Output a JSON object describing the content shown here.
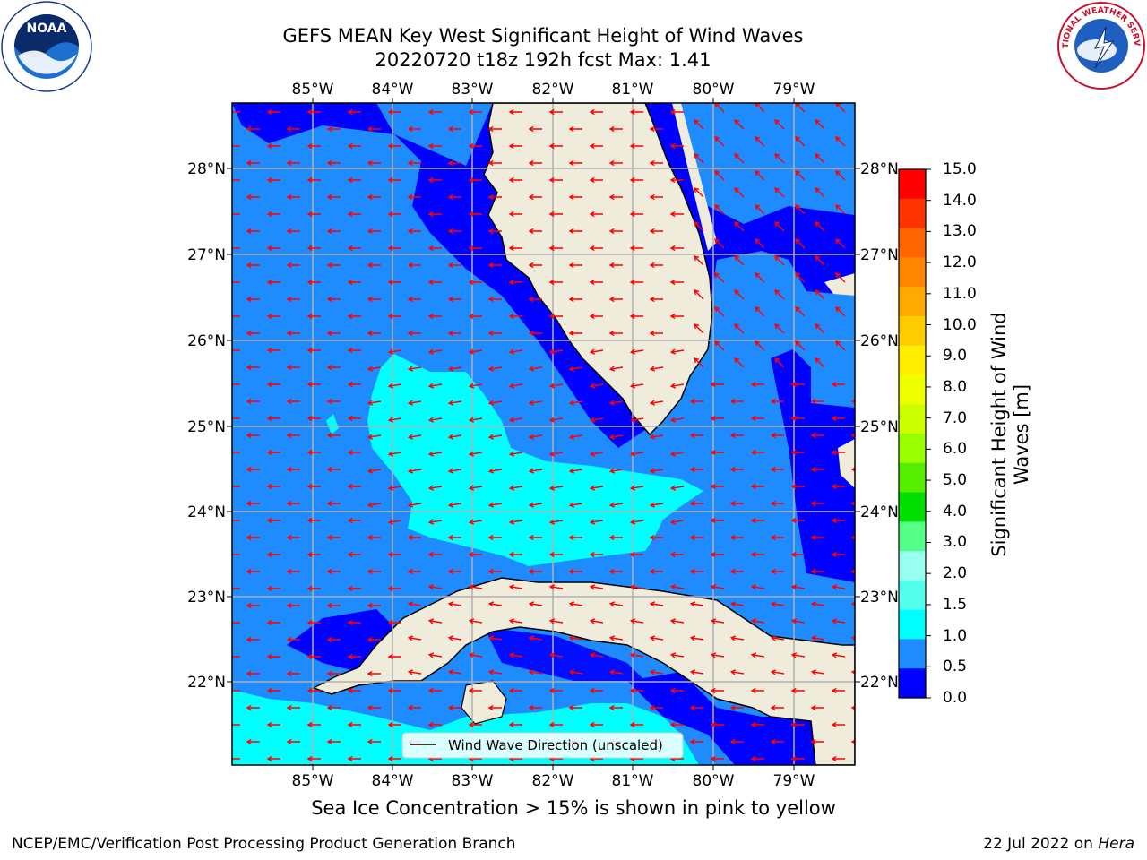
{
  "header": {
    "title_line1": "GEFS MEAN Key West Significant Height of Wind Waves",
    "title_line2": "20220720 t18z 192h fcst   Max: 1.41"
  },
  "logos": {
    "noaa_text": "NOAA",
    "nws_text": "NATIONAL WEATHER SERVICE"
  },
  "map": {
    "lon_labels": [
      "85°W",
      "84°W",
      "83°W",
      "82°W",
      "81°W",
      "80°W",
      "79°W"
    ],
    "lat_labels": [
      "28°N",
      "27°N",
      "26°N",
      "25°N",
      "24°N",
      "23°N",
      "22°N"
    ],
    "legend_label": "Wind Wave Direction (unscaled)",
    "colors": {
      "land": "#efecdc",
      "deep_blue": "#0000ff",
      "mid_blue": "#1e8cff",
      "cyan": "#00ffff",
      "arrow": "#ff0000",
      "grid": "#b0b0b0"
    }
  },
  "colorbar": {
    "title": "Significant Height of Wind Waves [m]",
    "ticks": [
      "15.0",
      "14.0",
      "13.0",
      "12.0",
      "11.0",
      "10.0",
      "9.0",
      "8.0",
      "7.0",
      "6.0",
      "5.0",
      "4.0",
      "3.0",
      "2.0",
      "1.5",
      "1.0",
      "0.5",
      "0.0"
    ],
    "colors": [
      "#ff0000",
      "#ff3300",
      "#ff6600",
      "#ff8800",
      "#ffaa00",
      "#ffcc00",
      "#ffee00",
      "#eeff00",
      "#ccff00",
      "#99ff00",
      "#55ee00",
      "#00dd00",
      "#55ff88",
      "#99ffee",
      "#55ffee",
      "#00ffff",
      "#1e8cff",
      "#0000ff"
    ]
  },
  "footer": {
    "note": "Sea Ice Concentration > 15% is shown in pink to yellow",
    "left": "NCEP/EMC/Verification Post Processing Product Generation Branch",
    "right_date": "22 Jul 2022 on ",
    "right_host": "Hera"
  }
}
